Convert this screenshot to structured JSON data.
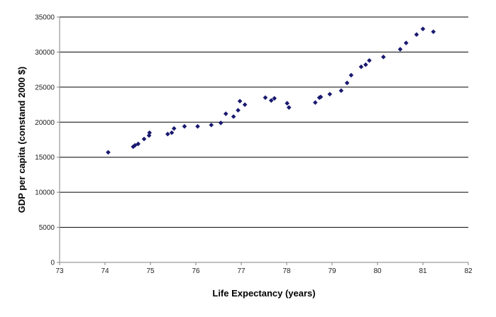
{
  "chart_data": {
    "type": "scatter",
    "title": "",
    "xlabel": "Life Expectancy (years)",
    "ylabel": "GDP per capita (constand 2000 $)",
    "xlim": [
      73,
      82
    ],
    "ylim": [
      0,
      35000
    ],
    "x_ticks": [
      73,
      74,
      75,
      76,
      77,
      78,
      79,
      80,
      81,
      82
    ],
    "y_ticks": [
      0,
      5000,
      10000,
      15000,
      20000,
      25000,
      30000,
      35000
    ],
    "x_tick_labels": [
      "73",
      "74",
      "75",
      "76",
      "77",
      "78",
      "79",
      "80",
      "81",
      "82"
    ],
    "y_tick_labels": [
      "0",
      "5000",
      "10000",
      "15000",
      "20000",
      "25000",
      "30000",
      "35000"
    ],
    "grid": "horizontal",
    "marker": "diamond",
    "marker_color": "#191970",
    "legend": "none",
    "series": [
      {
        "points": [
          [
            74.07,
            15700
          ],
          [
            74.62,
            16500
          ],
          [
            74.66,
            16700
          ],
          [
            74.73,
            16900
          ],
          [
            74.86,
            17600
          ],
          [
            74.97,
            18100
          ],
          [
            74.98,
            18500
          ],
          [
            75.38,
            18300
          ],
          [
            75.47,
            18500
          ],
          [
            75.52,
            19100
          ],
          [
            75.75,
            19400
          ],
          [
            76.04,
            19400
          ],
          [
            76.34,
            19600
          ],
          [
            76.55,
            19900
          ],
          [
            76.66,
            21200
          ],
          [
            76.83,
            20800
          ],
          [
            76.93,
            21700
          ],
          [
            76.97,
            23000
          ],
          [
            77.08,
            22500
          ],
          [
            77.53,
            23500
          ],
          [
            77.66,
            23100
          ],
          [
            77.73,
            23400
          ],
          [
            78.01,
            22700
          ],
          [
            78.05,
            22100
          ],
          [
            78.63,
            22800
          ],
          [
            78.72,
            23500
          ],
          [
            78.75,
            23600
          ],
          [
            78.95,
            24000
          ],
          [
            79.2,
            24500
          ],
          [
            79.33,
            25600
          ],
          [
            79.42,
            26700
          ],
          [
            79.64,
            27900
          ],
          [
            79.74,
            28200
          ],
          [
            79.82,
            28800
          ],
          [
            80.13,
            29300
          ],
          [
            80.5,
            30400
          ],
          [
            80.63,
            31300
          ],
          [
            80.86,
            32500
          ],
          [
            81,
            33300
          ],
          [
            81.23,
            32900
          ]
        ]
      }
    ]
  }
}
